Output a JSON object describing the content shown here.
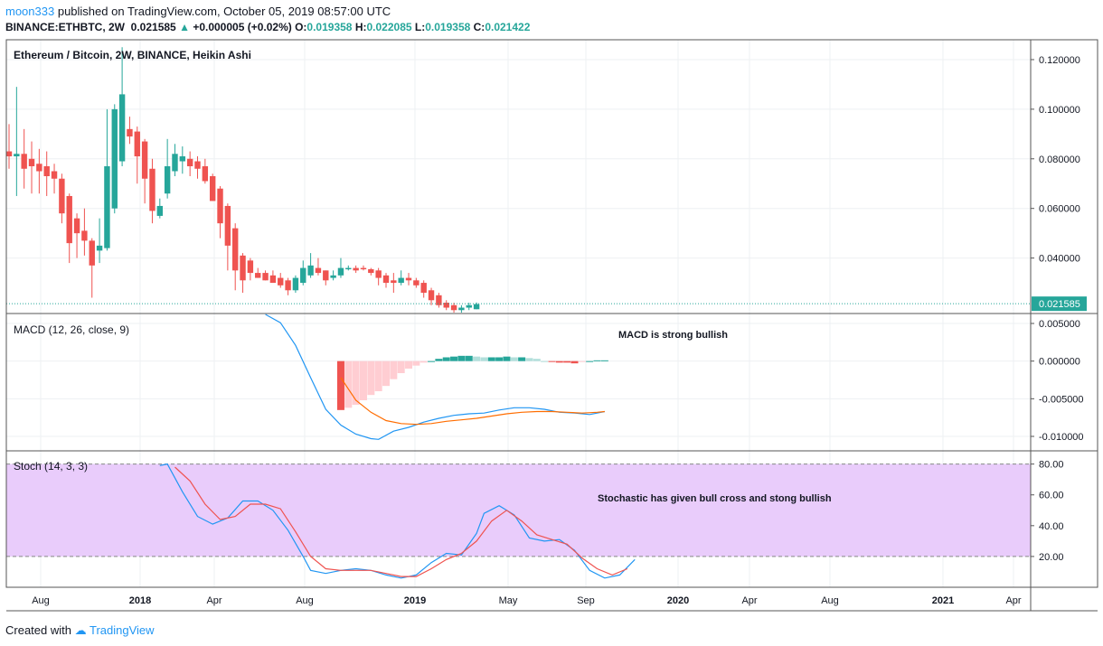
{
  "header": {
    "username": "moon333",
    "published_text": "published on TradingView.com, October 05, 2019 08:57:00 UTC",
    "symbol": "BINANCE:ETHBTC, 2W",
    "last_price": "0.021585",
    "change_arrow": "▲",
    "change": "+0.000005 (+0.02%)",
    "o_label": "O:",
    "o_value": "0.019358",
    "h_label": "H:",
    "h_value": "0.022085",
    "l_label": "L:",
    "l_value": "0.019358",
    "c_label": "C:",
    "c_value": "0.021422"
  },
  "footer": {
    "created_with": "Created with",
    "brand": "TradingView"
  },
  "colors": {
    "bull": "#26a69a",
    "bear": "#ef5350",
    "macd": "#2196f3",
    "signal": "#ff6d00",
    "hist_pos_strong": "#26a69a",
    "hist_pos_weak": "#b2dfdb",
    "hist_neg_strong": "#ef5350",
    "hist_neg_weak": "#ffcdd2",
    "stoch_k": "#2196f3",
    "stoch_d": "#ef5350",
    "stoch_band": "#e9ccfb"
  },
  "chart_data": [
    {
      "type": "candlestick",
      "title": "Ethereum / Bitcoin, 2W, BINANCE, Heikin Ashi",
      "price_label": "0.021585",
      "ylim": [
        0.018,
        0.128
      ],
      "y_ticks": [
        "0.120000",
        "0.100000",
        "0.080000",
        "0.060000",
        "0.040000"
      ],
      "y_tick_values": [
        0.12,
        0.1,
        0.08,
        0.06,
        0.04
      ],
      "x_ticks": [
        "Aug",
        "2018",
        "Apr",
        "Aug",
        "2019",
        "May",
        "Sep",
        "2020",
        "Apr",
        "Aug",
        "2021",
        "Apr"
      ],
      "bars": [
        {
          "o": 0.083,
          "h": 0.094,
          "l": 0.076,
          "c": 0.081
        },
        {
          "o": 0.081,
          "h": 0.109,
          "l": 0.065,
          "c": 0.082
        },
        {
          "o": 0.082,
          "h": 0.092,
          "l": 0.068,
          "c": 0.076
        },
        {
          "o": 0.08,
          "h": 0.087,
          "l": 0.066,
          "c": 0.077
        },
        {
          "o": 0.078,
          "h": 0.084,
          "l": 0.066,
          "c": 0.075
        },
        {
          "o": 0.077,
          "h": 0.083,
          "l": 0.065,
          "c": 0.073
        },
        {
          "o": 0.075,
          "h": 0.078,
          "l": 0.066,
          "c": 0.072
        },
        {
          "o": 0.072,
          "h": 0.074,
          "l": 0.054,
          "c": 0.058
        },
        {
          "o": 0.065,
          "h": 0.066,
          "l": 0.038,
          "c": 0.046
        },
        {
          "o": 0.056,
          "h": 0.058,
          "l": 0.04,
          "c": 0.05
        },
        {
          "o": 0.051,
          "h": 0.06,
          "l": 0.041,
          "c": 0.047
        },
        {
          "o": 0.047,
          "h": 0.048,
          "l": 0.024,
          "c": 0.037
        },
        {
          "o": 0.043,
          "h": 0.056,
          "l": 0.038,
          "c": 0.045
        },
        {
          "o": 0.044,
          "h": 0.1,
          "l": 0.043,
          "c": 0.077
        },
        {
          "o": 0.06,
          "h": 0.102,
          "l": 0.058,
          "c": 0.1
        },
        {
          "o": 0.079,
          "h": 0.125,
          "l": 0.077,
          "c": 0.106
        },
        {
          "o": 0.092,
          "h": 0.097,
          "l": 0.086,
          "c": 0.089
        },
        {
          "o": 0.091,
          "h": 0.093,
          "l": 0.07,
          "c": 0.081
        },
        {
          "o": 0.087,
          "h": 0.088,
          "l": 0.062,
          "c": 0.072
        },
        {
          "o": 0.076,
          "h": 0.08,
          "l": 0.054,
          "c": 0.059
        },
        {
          "o": 0.057,
          "h": 0.064,
          "l": 0.056,
          "c": 0.061
        },
        {
          "o": 0.066,
          "h": 0.088,
          "l": 0.064,
          "c": 0.077
        },
        {
          "o": 0.075,
          "h": 0.086,
          "l": 0.073,
          "c": 0.082
        },
        {
          "o": 0.079,
          "h": 0.085,
          "l": 0.074,
          "c": 0.081
        },
        {
          "o": 0.08,
          "h": 0.083,
          "l": 0.073,
          "c": 0.077
        },
        {
          "o": 0.079,
          "h": 0.081,
          "l": 0.072,
          "c": 0.076
        },
        {
          "o": 0.077,
          "h": 0.08,
          "l": 0.07,
          "c": 0.071
        },
        {
          "o": 0.073,
          "h": 0.074,
          "l": 0.063,
          "c": 0.063
        },
        {
          "o": 0.068,
          "h": 0.069,
          "l": 0.048,
          "c": 0.054
        },
        {
          "o": 0.061,
          "h": 0.062,
          "l": 0.035,
          "c": 0.045
        },
        {
          "o": 0.052,
          "h": 0.054,
          "l": 0.027,
          "c": 0.035
        },
        {
          "o": 0.041,
          "h": 0.042,
          "l": 0.026,
          "c": 0.031
        },
        {
          "o": 0.039,
          "h": 0.04,
          "l": 0.031,
          "c": 0.034
        },
        {
          "o": 0.034,
          "h": 0.036,
          "l": 0.032,
          "c": 0.032
        },
        {
          "o": 0.034,
          "h": 0.035,
          "l": 0.031,
          "c": 0.031
        },
        {
          "o": 0.033,
          "h": 0.035,
          "l": 0.03,
          "c": 0.03
        },
        {
          "o": 0.032,
          "h": 0.034,
          "l": 0.028,
          "c": 0.029
        },
        {
          "o": 0.031,
          "h": 0.032,
          "l": 0.025,
          "c": 0.027
        },
        {
          "o": 0.027,
          "h": 0.033,
          "l": 0.026,
          "c": 0.032
        },
        {
          "o": 0.03,
          "h": 0.039,
          "l": 0.029,
          "c": 0.036
        },
        {
          "o": 0.033,
          "h": 0.042,
          "l": 0.032,
          "c": 0.037
        },
        {
          "o": 0.036,
          "h": 0.04,
          "l": 0.033,
          "c": 0.034
        },
        {
          "o": 0.035,
          "h": 0.035,
          "l": 0.029,
          "c": 0.031
        },
        {
          "o": 0.032,
          "h": 0.035,
          "l": 0.031,
          "c": 0.033
        },
        {
          "o": 0.033,
          "h": 0.04,
          "l": 0.032,
          "c": 0.036
        },
        {
          "o": 0.036,
          "h": 0.037,
          "l": 0.035,
          "c": 0.036
        },
        {
          "o": 0.036,
          "h": 0.037,
          "l": 0.034,
          "c": 0.035
        },
        {
          "o": 0.036,
          "h": 0.037,
          "l": 0.035,
          "c": 0.0355
        },
        {
          "o": 0.0355,
          "h": 0.036,
          "l": 0.033,
          "c": 0.034
        },
        {
          "o": 0.035,
          "h": 0.036,
          "l": 0.029,
          "c": 0.032
        },
        {
          "o": 0.033,
          "h": 0.034,
          "l": 0.028,
          "c": 0.03
        },
        {
          "o": 0.031,
          "h": 0.034,
          "l": 0.026,
          "c": 0.03
        },
        {
          "o": 0.03,
          "h": 0.035,
          "l": 0.029,
          "c": 0.032
        },
        {
          "o": 0.032,
          "h": 0.034,
          "l": 0.029,
          "c": 0.031
        },
        {
          "o": 0.031,
          "h": 0.032,
          "l": 0.028,
          "c": 0.029
        },
        {
          "o": 0.03,
          "h": 0.031,
          "l": 0.024,
          "c": 0.026
        },
        {
          "o": 0.027,
          "h": 0.028,
          "l": 0.021,
          "c": 0.023
        },
        {
          "o": 0.025,
          "h": 0.026,
          "l": 0.02,
          "c": 0.021
        },
        {
          "o": 0.022,
          "h": 0.023,
          "l": 0.019,
          "c": 0.02
        },
        {
          "o": 0.021,
          "h": 0.022,
          "l": 0.018,
          "c": 0.019
        },
        {
          "o": 0.019,
          "h": 0.021,
          "l": 0.018,
          "c": 0.02
        },
        {
          "o": 0.02,
          "h": 0.022,
          "l": 0.019,
          "c": 0.021
        },
        {
          "o": 0.019358,
          "h": 0.022085,
          "l": 0.019358,
          "c": 0.021422
        }
      ]
    },
    {
      "type": "macd",
      "title": "MACD (12, 26, close, 9)",
      "annotation": "MACD is strong bullish",
      "ylim": [
        -0.0118,
        0.0062
      ],
      "y_ticks": [
        "0.005000",
        "0.000000",
        "-0.005000",
        "-0.010000"
      ],
      "y_tick_values": [
        0.005,
        0.0,
        -0.005,
        -0.01
      ],
      "macd": [
        [
          34,
          0.0062
        ],
        [
          36,
          0.0051
        ],
        [
          38,
          0.0021
        ],
        [
          40,
          -0.0022
        ],
        [
          42,
          -0.0064
        ],
        [
          44,
          -0.0085
        ],
        [
          46,
          -0.0097
        ],
        [
          48,
          -0.0103
        ],
        [
          49,
          -0.0104
        ],
        [
          51,
          -0.0093
        ],
        [
          53,
          -0.0088
        ],
        [
          55,
          -0.0081
        ],
        [
          57,
          -0.0076
        ],
        [
          59,
          -0.0072
        ],
        [
          61,
          -0.007
        ],
        [
          63,
          -0.0069
        ],
        [
          65,
          -0.0065
        ],
        [
          67,
          -0.0062
        ],
        [
          69,
          -0.0062
        ],
        [
          71,
          -0.0064
        ],
        [
          73,
          -0.0068
        ],
        [
          75,
          -0.0069
        ],
        [
          77,
          -0.0071
        ],
        [
          78,
          -0.0069
        ],
        [
          79,
          -0.0067
        ]
      ],
      "signal": [
        [
          44,
          -0.0022
        ],
        [
          46,
          -0.0052
        ],
        [
          48,
          -0.0068
        ],
        [
          50,
          -0.0079
        ],
        [
          52,
          -0.0083
        ],
        [
          54,
          -0.0084
        ],
        [
          56,
          -0.0083
        ],
        [
          58,
          -0.008
        ],
        [
          60,
          -0.0078
        ],
        [
          62,
          -0.0076
        ],
        [
          64,
          -0.0073
        ],
        [
          66,
          -0.007
        ],
        [
          68,
          -0.0068
        ],
        [
          70,
          -0.0067
        ],
        [
          72,
          -0.0067
        ],
        [
          74,
          -0.0068
        ],
        [
          76,
          -0.0069
        ],
        [
          78,
          -0.0068
        ],
        [
          79,
          -0.0067
        ]
      ],
      "histogram": [
        [
          44,
          -0.0065
        ],
        [
          45,
          -0.0062
        ],
        [
          46,
          -0.0058
        ],
        [
          47,
          -0.0052
        ],
        [
          48,
          -0.0045
        ],
        [
          49,
          -0.004
        ],
        [
          50,
          -0.0033
        ],
        [
          51,
          -0.0024
        ],
        [
          52,
          -0.0016
        ],
        [
          53,
          -0.001
        ],
        [
          54,
          -0.0006
        ],
        [
          55,
          -0.0002
        ],
        [
          56,
          0.0
        ],
        [
          57,
          0.0003
        ],
        [
          58,
          0.0005
        ],
        [
          59,
          0.0006
        ],
        [
          60,
          0.0007
        ],
        [
          61,
          0.0007
        ],
        [
          62,
          0.0006
        ],
        [
          63,
          0.0005
        ],
        [
          64,
          0.0005
        ],
        [
          65,
          0.0005
        ],
        [
          66,
          0.0006
        ],
        [
          67,
          0.0005
        ],
        [
          68,
          0.0005
        ],
        [
          69,
          0.0004
        ],
        [
          70,
          0.0003
        ],
        [
          71,
          0.0
        ],
        [
          72,
          -0.0001
        ],
        [
          73,
          -0.0002
        ],
        [
          74,
          -0.0002
        ],
        [
          75,
          -0.0003
        ],
        [
          76,
          -0.0001
        ],
        [
          77,
          0.0
        ],
        [
          78,
          0.0001
        ],
        [
          79,
          0.0001
        ]
      ]
    },
    {
      "type": "stochastic",
      "title": "Stoch (14, 3, 3)",
      "annotation": "Stochastic has given bull cross and stong bullish",
      "ylim": [
        0,
        88
      ],
      "band": [
        20,
        80
      ],
      "y_ticks": [
        "80.00",
        "60.00",
        "40.00",
        "20.00"
      ],
      "y_tick_values": [
        80,
        60,
        40,
        20
      ],
      "k": [
        [
          20,
          79
        ],
        [
          21,
          80
        ],
        [
          23,
          62
        ],
        [
          25,
          46
        ],
        [
          27,
          41
        ],
        [
          29,
          45
        ],
        [
          31,
          56
        ],
        [
          33,
          56
        ],
        [
          35,
          50
        ],
        [
          37,
          37
        ],
        [
          39,
          20
        ],
        [
          40,
          11
        ],
        [
          42,
          9
        ],
        [
          44,
          11
        ],
        [
          46,
          12
        ],
        [
          48,
          11
        ],
        [
          50,
          8
        ],
        [
          52,
          6
        ],
        [
          54,
          8
        ],
        [
          56,
          16
        ],
        [
          58,
          22
        ],
        [
          60,
          21
        ],
        [
          62,
          35
        ],
        [
          63,
          48
        ],
        [
          65,
          53
        ],
        [
          67,
          47
        ],
        [
          69,
          32
        ],
        [
          71,
          30
        ],
        [
          73,
          31
        ],
        [
          75,
          24
        ],
        [
          77,
          11
        ],
        [
          79,
          6
        ],
        [
          81,
          8
        ],
        [
          83,
          18
        ]
      ],
      "d": [
        [
          22,
          78
        ],
        [
          24,
          69
        ],
        [
          26,
          54
        ],
        [
          28,
          44
        ],
        [
          30,
          46
        ],
        [
          32,
          54
        ],
        [
          34,
          54
        ],
        [
          36,
          51
        ],
        [
          38,
          36
        ],
        [
          40,
          20
        ],
        [
          42,
          12
        ],
        [
          44,
          11
        ],
        [
          46,
          11
        ],
        [
          48,
          11
        ],
        [
          50,
          9
        ],
        [
          52,
          7
        ],
        [
          54,
          7
        ],
        [
          56,
          12
        ],
        [
          58,
          18
        ],
        [
          60,
          22
        ],
        [
          62,
          30
        ],
        [
          64,
          43
        ],
        [
          66,
          50
        ],
        [
          68,
          43
        ],
        [
          70,
          34
        ],
        [
          72,
          31
        ],
        [
          74,
          28
        ],
        [
          76,
          19
        ],
        [
          78,
          12
        ],
        [
          80,
          8
        ],
        [
          82,
          12
        ]
      ]
    }
  ]
}
